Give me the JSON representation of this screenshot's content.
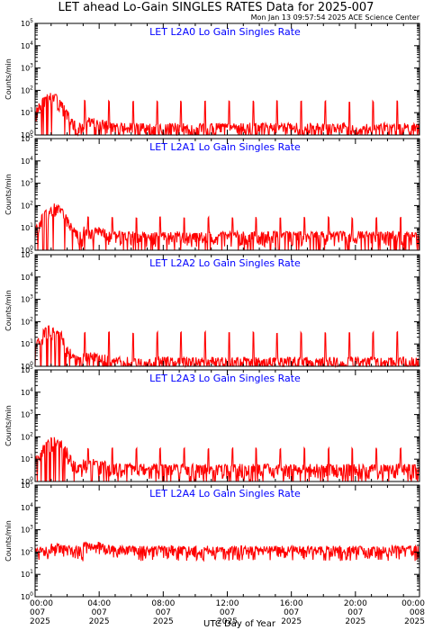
{
  "header": {
    "title": "LET ahead Lo-Gain SINGLES RATES Data for 2025-007",
    "timestamp": "Mon Jan 13 09:57:54 2025 ACE Science Center"
  },
  "colors": {
    "series": "#ff0000",
    "panel_title": "#0000ff",
    "axes": "#000000"
  },
  "x_axis": {
    "label": "UTC Day of Year",
    "range_hours": [
      0,
      24
    ],
    "ticks": [
      {
        "hours": 0,
        "time": "00:00",
        "day": "007",
        "year": "2025"
      },
      {
        "hours": 4,
        "time": "04:00",
        "day": "007",
        "year": "2025"
      },
      {
        "hours": 8,
        "time": "08:00",
        "day": "007",
        "year": "2025"
      },
      {
        "hours": 12,
        "time": "12:00",
        "day": "007",
        "year": "2025"
      },
      {
        "hours": 16,
        "time": "16:00",
        "day": "007",
        "year": "2025"
      },
      {
        "hours": 20,
        "time": "20:00",
        "day": "007",
        "year": "2025"
      },
      {
        "hours": 24,
        "time": "00:00",
        "day": "008",
        "year": "2025"
      }
    ]
  },
  "chart_data": [
    {
      "type": "line",
      "title": "LET L2A0 Lo Gain Singles Rate",
      "ylabel": "Counts/min",
      "yscale": "log",
      "ylim": [
        1,
        100000
      ],
      "series": [
        {
          "spike_start_h": 1.6,
          "spike_period_h": 1.5,
          "spike_peak": 32,
          "peak_h": 1.0,
          "peak_value": 45,
          "base_value": 2
        }
      ]
    },
    {
      "type": "line",
      "title": "LET L2A1 Lo Gain Singles Rate",
      "ylabel": "Counts/min",
      "yscale": "log",
      "ylim": [
        1,
        100000
      ],
      "series": [
        {
          "spike_start_h": 1.8,
          "spike_period_h": 1.5,
          "spike_peak": 28,
          "peak_h": 1.2,
          "peak_value": 70,
          "base_value": 4
        }
      ]
    },
    {
      "type": "line",
      "title": "LET L2A2 Lo Gain Singles Rate",
      "ylabel": "Counts/min",
      "yscale": "log",
      "ylim": [
        1,
        100000
      ],
      "series": [
        {
          "spike_start_h": 1.6,
          "spike_period_h": 1.5,
          "spike_peak": 32,
          "peak_h": 1.0,
          "peak_value": 40,
          "base_value": 1.5
        }
      ]
    },
    {
      "type": "line",
      "title": "LET L2A3 Lo Gain Singles Rate",
      "ylabel": "Counts/min",
      "yscale": "log",
      "ylim": [
        1,
        100000
      ],
      "series": [
        {
          "spike_start_h": 1.8,
          "spike_period_h": 1.5,
          "spike_peak": 30,
          "peak_h": 1.2,
          "peak_value": 60,
          "base_value": 3.5
        }
      ]
    },
    {
      "type": "line",
      "title": "LET L2A4 Lo Gain Singles Rate",
      "ylabel": "Counts/min",
      "yscale": "log",
      "ylim": [
        1,
        100000
      ],
      "series": [
        {
          "spike_start_h": 99,
          "spike_period_h": 1.5,
          "spike_peak": 0,
          "peak_h": 1.0,
          "peak_value": 140,
          "base_value": 110
        }
      ]
    }
  ]
}
